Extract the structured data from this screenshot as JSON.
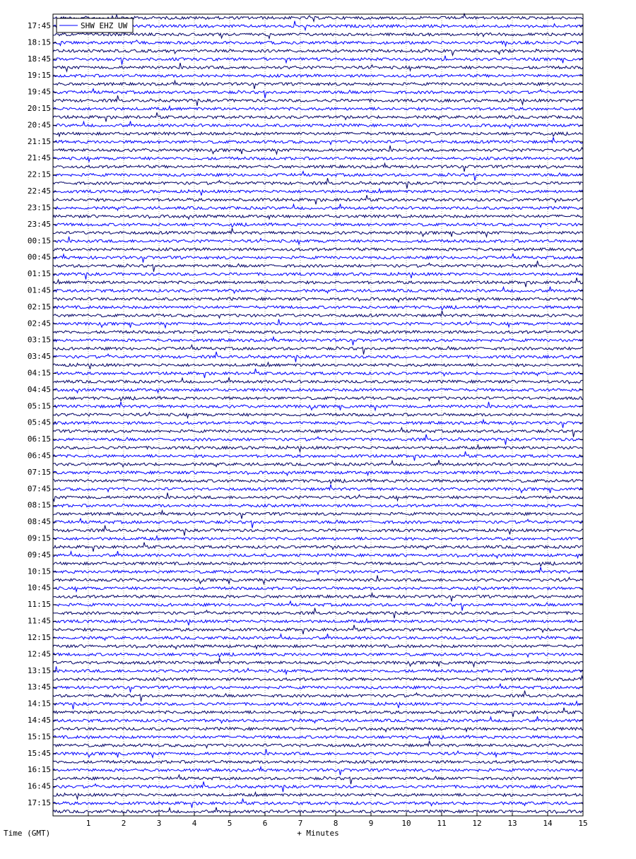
{
  "chart_data": {
    "type": "helicorder",
    "legend": "SHW EHZ UW",
    "ylabel": "Time (GMT)",
    "xlabel": "+ Minutes",
    "xlim": [
      0,
      15
    ],
    "xticks": [
      1,
      2,
      3,
      4,
      5,
      6,
      7,
      8,
      9,
      10,
      11,
      12,
      13,
      14,
      15
    ],
    "time_labels": [
      "17:45",
      "18:15",
      "18:45",
      "19:15",
      "19:45",
      "20:15",
      "20:45",
      "21:15",
      "21:45",
      "22:15",
      "22:45",
      "23:15",
      "23:45",
      "00:15",
      "00:45",
      "01:15",
      "01:45",
      "02:15",
      "02:45",
      "03:15",
      "03:45",
      "04:15",
      "04:45",
      "05:15",
      "05:45",
      "06:15",
      "06:45",
      "07:15",
      "07:45",
      "08:15",
      "08:45",
      "09:15",
      "09:45",
      "10:15",
      "10:45",
      "11:15",
      "11:45",
      "12:15",
      "12:45",
      "13:15",
      "13:45",
      "14:15",
      "14:45",
      "15:15",
      "15:45",
      "16:15",
      "16:45",
      "17:15"
    ],
    "colors": [
      "#000066",
      "#0000ff"
    ],
    "grid": true
  }
}
